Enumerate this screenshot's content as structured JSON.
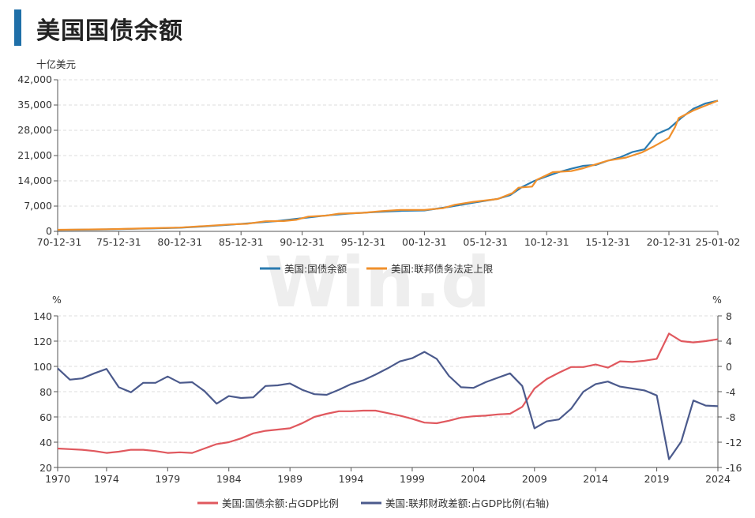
{
  "page": {
    "title": "美国国债余额"
  },
  "colors": {
    "accent": "#1f6fa8",
    "debt": "#2b7bb0",
    "limit": "#f0902c",
    "ratio": "#e0585e",
    "deficit": "#4b5a8c",
    "watermark": "#eeeeee"
  },
  "watermark": "Win.d",
  "chart_data": [
    {
      "type": "line",
      "title": "",
      "unit_label": "十亿美元",
      "ylim": [
        0,
        42000
      ],
      "yticks": [
        0,
        7000,
        14000,
        21000,
        28000,
        35000,
        42000
      ],
      "ytick_labels": [
        "0",
        "7,000",
        "14,000",
        "21,000",
        "28,000",
        "35,000",
        "42,000"
      ],
      "xlim": [
        1970.997,
        2025.003
      ],
      "xticks": [
        1970.997,
        1975.997,
        1980.997,
        1985.997,
        1990.997,
        1995.997,
        2000.997,
        2005.997,
        2010.997,
        2015.997,
        2020.997,
        2025.003
      ],
      "xtick_labels": [
        "70-12-31",
        "75-12-31",
        "80-12-31",
        "85-12-31",
        "90-12-31",
        "95-12-31",
        "00-12-31",
        "05-12-31",
        "10-12-31",
        "15-12-31",
        "20-12-31",
        "25-01-02"
      ],
      "grid": true,
      "legend": "bottom",
      "series": [
        {
          "name": "美国:国债余额",
          "color": "#2b7bb0",
          "x": [
            1971,
            1973,
            1975,
            1977,
            1979,
            1981,
            1983,
            1985,
            1987,
            1989,
            1991,
            1993,
            1995,
            1997,
            1999,
            2001,
            2003,
            2005,
            2007,
            2008,
            2009,
            2010,
            2011,
            2012,
            2013,
            2014,
            2015,
            2016,
            2017,
            2018,
            2019,
            2020,
            2021,
            2022,
            2023,
            2024,
            2025
          ],
          "y": [
            400,
            460,
            540,
            700,
            830,
            1000,
            1380,
            1820,
            2350,
            2860,
            3660,
            4410,
            4970,
            5370,
            5660,
            5800,
            6780,
            7930,
            9010,
            10020,
            12310,
            14000,
            15220,
            16430,
            17350,
            18150,
            18400,
            19570,
            20490,
            21970,
            22720,
            26950,
            28430,
            31420,
            34000,
            35460,
            36200
          ]
        },
        {
          "name": "美国:联邦债务法定上限",
          "color": "#f0902c",
          "x": [
            1971,
            1973,
            1975,
            1977,
            1979,
            1981,
            1983,
            1985,
            1986.5,
            1988,
            1989.5,
            1990.5,
            1991.5,
            1993,
            1994,
            1996,
            1997.5,
            1999,
            2001,
            2002.5,
            2003.5,
            2005,
            2007,
            2008.2,
            2008.7,
            2009.8,
            2010.2,
            2011.5,
            2013,
            2014,
            2016,
            2017.5,
            2018.8,
            2019.8,
            2021,
            2021.5,
            2021.8,
            2023,
            2025
          ],
          "y": [
            430,
            500,
            580,
            750,
            900,
            1040,
            1470,
            1900,
            2100,
            2800,
            2870,
            3200,
            4100,
            4370,
            4900,
            5150,
            5600,
            5950,
            5950,
            6400,
            7380,
            8180,
            8960,
            10620,
            12100,
            12400,
            14300,
            16400,
            16700,
            17500,
            19600,
            20450,
            21900,
            23600,
            25850,
            28900,
            31400,
            33500,
            36200
          ]
        }
      ]
    },
    {
      "type": "line",
      "title": "",
      "unit_left": "%",
      "unit_right": "%",
      "ylim_left": [
        20,
        140
      ],
      "yticks_left": [
        20,
        40,
        60,
        80,
        100,
        120,
        140
      ],
      "ylim_right": [
        -16,
        8
      ],
      "yticks_right": [
        -16,
        -12,
        -8,
        -4,
        0,
        4,
        8
      ],
      "xlim": [
        1970,
        2024
      ],
      "xticks": [
        1970,
        1974,
        1979,
        1984,
        1989,
        1994,
        1999,
        2004,
        2009,
        2014,
        2019,
        2024
      ],
      "grid": true,
      "legend": "bottom",
      "series": [
        {
          "name": "美国:国债余额:占GDP比例",
          "axis": "left",
          "color": "#e0585e",
          "x": [
            1970,
            1971,
            1972,
            1973,
            1974,
            1975,
            1976,
            1977,
            1978,
            1979,
            1980,
            1981,
            1982,
            1983,
            1984,
            1985,
            1986,
            1987,
            1988,
            1989,
            1990,
            1991,
            1992,
            1993,
            1994,
            1995,
            1996,
            1997,
            1998,
            1999,
            2000,
            2001,
            2002,
            2003,
            2004,
            2005,
            2006,
            2007,
            2008,
            2009,
            2010,
            2011,
            2012,
            2013,
            2014,
            2015,
            2016,
            2017,
            2018,
            2019,
            2020,
            2021,
            2022,
            2023,
            2024
          ],
          "y": [
            35,
            34.5,
            34,
            33,
            31.5,
            32.5,
            34,
            34,
            33,
            31.5,
            32,
            31.5,
            35,
            38.5,
            40,
            43,
            47,
            49,
            50,
            51,
            55,
            60,
            62.5,
            64.5,
            64.5,
            65,
            65,
            63,
            61,
            58.5,
            55.5,
            55,
            57,
            59.5,
            60.5,
            61,
            62,
            62.5,
            68,
            82.5,
            90,
            95,
            99.5,
            99.5,
            101.5,
            99,
            104,
            103.5,
            104.5,
            106,
            126,
            120,
            119,
            120,
            121.5
          ]
        },
        {
          "name": "美国:联邦财政差额:占GDP比例(右轴)",
          "axis": "right",
          "color": "#4b5a8c",
          "x": [
            1970,
            1971,
            1972,
            1973,
            1974,
            1975,
            1976,
            1977,
            1978,
            1979,
            1980,
            1981,
            1982,
            1983,
            1984,
            1985,
            1986,
            1987,
            1988,
            1989,
            1990,
            1991,
            1992,
            1993,
            1994,
            1995,
            1996,
            1997,
            1998,
            1999,
            2000,
            2001,
            2002,
            2003,
            2004,
            2005,
            2006,
            2007,
            2008,
            2009,
            2010,
            2011,
            2012,
            2013,
            2014,
            2015,
            2016,
            2017,
            2018,
            2019,
            2020,
            2021,
            2022,
            2023,
            2024
          ],
          "y": [
            -0.3,
            -2.1,
            -1.9,
            -1.1,
            -0.4,
            -3.3,
            -4.1,
            -2.6,
            -2.6,
            -1.6,
            -2.6,
            -2.5,
            -3.9,
            -5.9,
            -4.7,
            -5.0,
            -4.9,
            -3.1,
            -3.0,
            -2.7,
            -3.7,
            -4.4,
            -4.5,
            -3.7,
            -2.8,
            -2.2,
            -1.3,
            -0.3,
            0.8,
            1.3,
            2.3,
            1.2,
            -1.5,
            -3.3,
            -3.4,
            -2.5,
            -1.8,
            -1.1,
            -3.1,
            -9.8,
            -8.7,
            -8.4,
            -6.7,
            -4.0,
            -2.8,
            -2.4,
            -3.2,
            -3.5,
            -3.8,
            -4.6,
            -14.7,
            -11.9,
            -5.4,
            -6.2,
            -6.3
          ]
        }
      ]
    }
  ]
}
